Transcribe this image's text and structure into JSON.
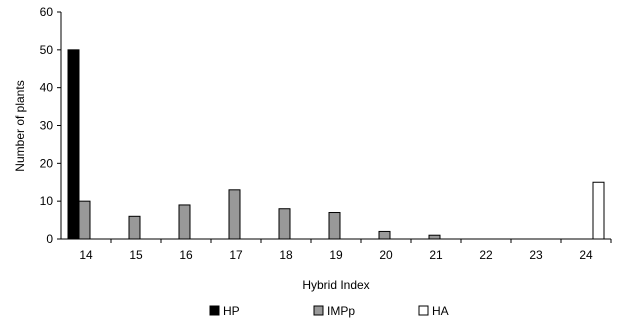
{
  "chart_data": {
    "type": "bar",
    "title": "",
    "xlabel": "Hybrid Index",
    "ylabel": "Number of plants",
    "ylim": [
      0,
      60
    ],
    "yticks": [
      "0",
      "10",
      "20",
      "30",
      "40",
      "50",
      "60"
    ],
    "categories": [
      "14",
      "15",
      "16",
      "17",
      "18",
      "19",
      "20",
      "21",
      "22",
      "23",
      "24"
    ],
    "series": [
      {
        "name": "HP",
        "color": "#000000",
        "values": [
          50,
          0,
          0,
          0,
          0,
          0,
          0,
          0,
          0,
          0,
          0
        ]
      },
      {
        "name": "IMPp",
        "color": "#999999",
        "values": [
          10,
          6,
          9,
          13,
          8,
          7,
          2,
          1,
          0,
          0,
          0
        ]
      },
      {
        "name": "HA",
        "color": "#ffffff",
        "values": [
          0,
          0,
          0,
          0,
          0,
          0,
          0,
          0,
          0,
          0,
          15
        ]
      }
    ],
    "grid": false,
    "legend": "bottom"
  }
}
